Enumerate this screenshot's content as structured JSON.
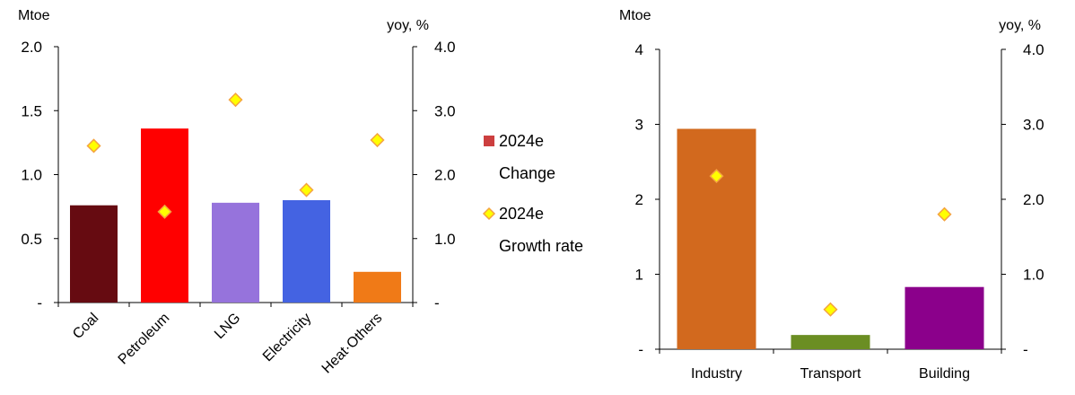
{
  "chart_data": [
    {
      "type": "bar",
      "left_unit": "Mtoe",
      "right_unit": "yoy, %",
      "categories": [
        "Coal",
        "Petroleum",
        "LNG",
        "Electricity",
        "Heat·Others"
      ],
      "series": [
        {
          "name": "2024e Change",
          "type": "bar",
          "axis": "left",
          "values": [
            0.76,
            1.36,
            0.78,
            0.8,
            0.24
          ],
          "colors": [
            "#660b11",
            "#ff0000",
            "#9673dc",
            "#4463e2",
            "#f07a17"
          ]
        },
        {
          "name": "2024e Growth rate",
          "type": "scatter",
          "axis": "right",
          "values": [
            2.45,
            1.42,
            3.17,
            1.76,
            2.54
          ],
          "color": "#ffff00",
          "edge_color": "#f4a340"
        }
      ],
      "ylim_left": [
        0,
        2.0
      ],
      "yticks_left": [
        "-",
        "0.5",
        "1.0",
        "1.5",
        "2.0"
      ],
      "ylim_right": [
        0,
        4.0
      ],
      "yticks_right": [
        "-",
        "1.0",
        "2.0",
        "3.0",
        "4.0"
      ],
      "legend": {
        "placement": "right",
        "bar_label": [
          "2024e",
          "Change"
        ],
        "marker_label": [
          "2024e",
          "Growth rate"
        ],
        "bar_color": "#cc3f3f"
      },
      "grid": false
    },
    {
      "type": "bar",
      "left_unit": "Mtoe",
      "right_unit": "yoy, %",
      "categories": [
        "Industry",
        "Transport",
        "Building"
      ],
      "series": [
        {
          "name": "2024e Change",
          "type": "bar",
          "axis": "left",
          "values": [
            2.94,
            0.19,
            0.83
          ],
          "colors": [
            "#d2691e",
            "#6b8e23",
            "#8b008b"
          ]
        },
        {
          "name": "2024e Growth rate",
          "type": "scatter",
          "axis": "right",
          "values": [
            2.31,
            0.53,
            1.8
          ],
          "color": "#ffff00",
          "edge_color": "#f4a340"
        }
      ],
      "ylim_left": [
        0,
        4
      ],
      "yticks_left": [
        "-",
        "1",
        "2",
        "3",
        "4"
      ],
      "ylim_right": [
        0,
        4.0
      ],
      "yticks_right": [
        "-",
        "1.0",
        "2.0",
        "3.0",
        "4.0"
      ],
      "grid": false
    }
  ]
}
